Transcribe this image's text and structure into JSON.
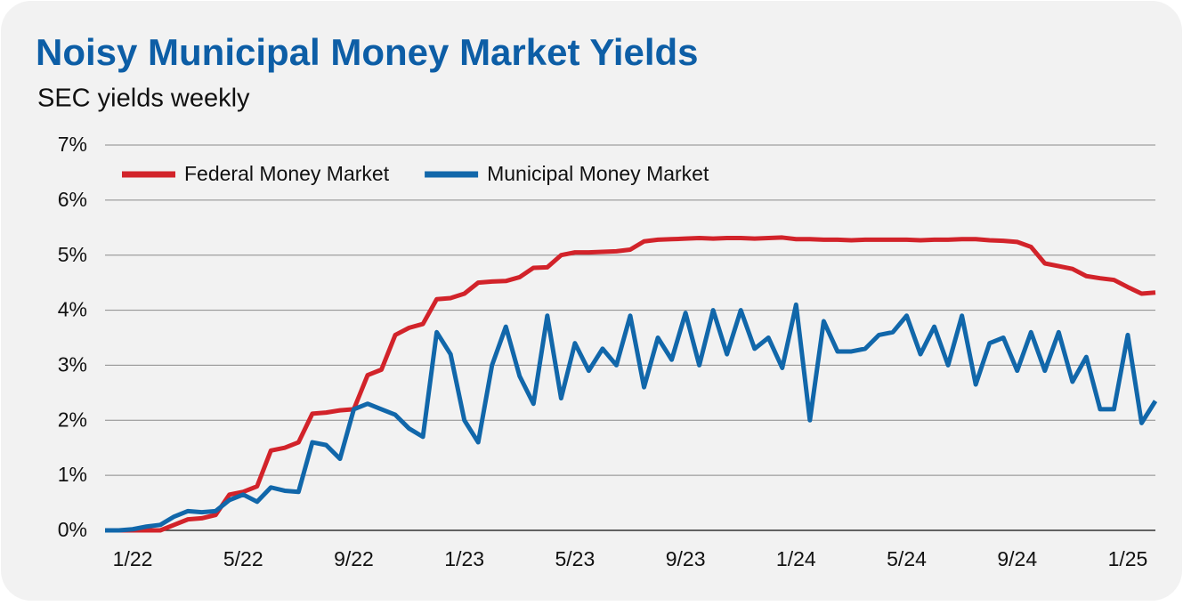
{
  "chart_data": {
    "type": "line",
    "title": "Noisy Municipal Money Market Yields",
    "subtitle": "SEC yields weekly",
    "categories": [
      null,
      null,
      "1/22",
      null,
      null,
      null,
      null,
      null,
      null,
      null,
      "5/22",
      null,
      null,
      null,
      null,
      null,
      null,
      null,
      "9/22",
      null,
      null,
      null,
      null,
      null,
      null,
      null,
      "1/23",
      null,
      null,
      null,
      null,
      null,
      null,
      null,
      "5/23",
      null,
      null,
      null,
      null,
      null,
      null,
      null,
      "9/23",
      null,
      null,
      null,
      null,
      null,
      null,
      null,
      "1/24",
      null,
      null,
      null,
      null,
      null,
      null,
      null,
      "5/24",
      null,
      null,
      null,
      null,
      null,
      null,
      null,
      "9/24",
      null,
      null,
      null,
      null,
      null,
      null,
      null,
      "1/25",
      null,
      null
    ],
    "series": [
      {
        "name": "Federal Money Market",
        "color": "#d2232a",
        "values": [
          0,
          0,
          0,
          0,
          0,
          0.1,
          0.2,
          0.22,
          0.28,
          0.65,
          0.7,
          0.8,
          1.45,
          1.5,
          1.6,
          2.12,
          2.14,
          2.18,
          2.2,
          2.82,
          2.92,
          3.55,
          3.68,
          3.75,
          4.2,
          4.22,
          4.3,
          4.5,
          4.52,
          4.53,
          4.6,
          4.77,
          4.78,
          5.0,
          5.05,
          5.05,
          5.06,
          5.07,
          5.1,
          5.25,
          5.28,
          5.29,
          5.3,
          5.31,
          5.3,
          5.31,
          5.31,
          5.3,
          5.31,
          5.32,
          5.29,
          5.29,
          5.28,
          5.28,
          5.27,
          5.28,
          5.28,
          5.28,
          5.28,
          5.27,
          5.28,
          5.28,
          5.29,
          5.29,
          5.27,
          5.26,
          5.24,
          5.15,
          4.85,
          4.8,
          4.75,
          4.62,
          4.58,
          4.55,
          4.42,
          4.3,
          4.32
        ]
      },
      {
        "name": "Municipal Money Market",
        "color": "#1167aa",
        "values": [
          0,
          0,
          0.02,
          0.07,
          0.1,
          0.25,
          0.35,
          0.33,
          0.35,
          0.55,
          0.65,
          0.52,
          0.78,
          0.72,
          0.7,
          1.6,
          1.55,
          1.3,
          2.2,
          2.3,
          2.2,
          2.1,
          1.85,
          1.7,
          3.6,
          3.2,
          2.0,
          1.6,
          3.0,
          3.7,
          2.8,
          2.3,
          3.9,
          2.4,
          3.4,
          2.9,
          3.3,
          3.0,
          3.9,
          2.6,
          3.5,
          3.1,
          3.95,
          3.0,
          4.0,
          3.2,
          4.0,
          3.3,
          3.5,
          2.95,
          4.1,
          2.0,
          3.8,
          3.25,
          3.25,
          3.3,
          3.55,
          3.6,
          3.9,
          3.2,
          3.7,
          3.0,
          3.9,
          2.65,
          3.4,
          3.5,
          2.9,
          3.6,
          2.9,
          3.6,
          2.7,
          3.15,
          2.2,
          2.2,
          3.55,
          1.95,
          2.35
        ]
      }
    ],
    "ylim": [
      0,
      7
    ],
    "yticks": [
      {
        "value": 0,
        "label": "0%"
      },
      {
        "value": 1,
        "label": "1%"
      },
      {
        "value": 2,
        "label": "2%"
      },
      {
        "value": 3,
        "label": "3%"
      },
      {
        "value": 4,
        "label": "4%"
      },
      {
        "value": 5,
        "label": "5%"
      },
      {
        "value": 6,
        "label": "6%"
      },
      {
        "value": 7,
        "label": "7%"
      }
    ],
    "grid": true,
    "legend": "upper left"
  }
}
